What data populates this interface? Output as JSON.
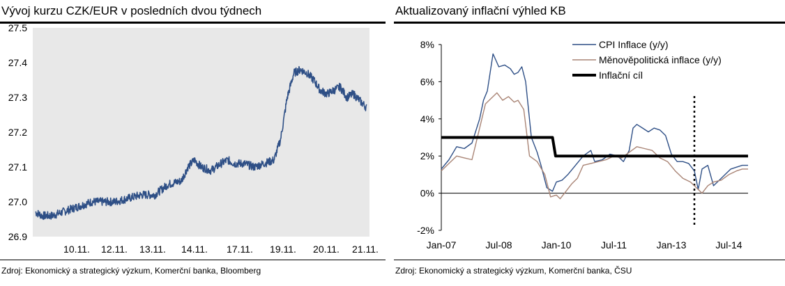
{
  "left": {
    "title": "Vývoj kurzu CZK/EUR v posledních dvou týdnech",
    "source": "Zdroj: Ekonomický a strategický výzkum, Komerční banka, Bloomberg"
  },
  "right": {
    "title": "Aktualizovaný inflační výhled KB",
    "source": "Zdroj: Ekonomický a strategický výzkum, Komerční banka, ČSU"
  },
  "chart_data": [
    {
      "type": "line",
      "title": "Vývoj kurzu CZK/EUR v posledních dvou týdnech",
      "ylim": [
        26.9,
        27.5
      ],
      "yticks": [
        "26.9",
        "27.0",
        "27.1",
        "27.2",
        "27.3",
        "27.4",
        "27.5"
      ],
      "xticks": [
        "10.11.",
        "12.11.",
        "13.11.",
        "14.11.",
        "17.11.",
        "19.11.",
        "20.11.",
        "21.11."
      ],
      "grid": false,
      "background": "#e8e8e8",
      "series": [
        {
          "color": "#2e4f86",
          "x": [
            0,
            0.02,
            0.05,
            0.08,
            0.11,
            0.14,
            0.17,
            0.2,
            0.24,
            0.28,
            0.32,
            0.36,
            0.4,
            0.44,
            0.46,
            0.48,
            0.5,
            0.53,
            0.56,
            0.58,
            0.6,
            0.63,
            0.66,
            0.69,
            0.72,
            0.74,
            0.76,
            0.78,
            0.8,
            0.82,
            0.84,
            0.86,
            0.88,
            0.9,
            0.92,
            0.94,
            0.96,
            0.98,
            1.0
          ],
          "values": [
            26.97,
            26.96,
            26.96,
            26.97,
            26.98,
            26.99,
            27.0,
            27.0,
            27.0,
            27.01,
            27.02,
            27.02,
            27.05,
            27.06,
            27.1,
            27.12,
            27.1,
            27.09,
            27.11,
            27.12,
            27.11,
            27.11,
            27.1,
            27.11,
            27.12,
            27.18,
            27.3,
            27.37,
            27.38,
            27.37,
            27.35,
            27.32,
            27.31,
            27.32,
            27.33,
            27.3,
            27.31,
            27.29,
            27.27
          ],
          "noise": 0.012
        }
      ]
    },
    {
      "type": "line",
      "title": "Aktualizovaný inflační výhled KB",
      "ylim": [
        -2,
        8
      ],
      "yticks": [
        "-2%",
        "0%",
        "2%",
        "4%",
        "6%",
        "8%"
      ],
      "xticks": [
        "Jan-07",
        "Jul-08",
        "Jan-10",
        "Jul-11",
        "Jan-13",
        "Jul-14"
      ],
      "xlim": [
        2007.0,
        2015.0
      ],
      "legend": "top-right",
      "vline_x": 2013.6,
      "series": [
        {
          "name": "CPI Inflace (y/y)",
          "color": "#2e4f86",
          "x": [
            2007.0,
            2007.2,
            2007.4,
            2007.6,
            2007.8,
            2008.0,
            2008.1,
            2008.2,
            2008.35,
            2008.5,
            2008.65,
            2008.8,
            2008.9,
            2009.0,
            2009.1,
            2009.2,
            2009.35,
            2009.5,
            2009.6,
            2009.75,
            2009.9,
            2010.0,
            2010.15,
            2010.3,
            2010.5,
            2010.7,
            2010.9,
            2011.0,
            2011.2,
            2011.4,
            2011.6,
            2011.75,
            2011.9,
            2012.0,
            2012.1,
            2012.25,
            2012.4,
            2012.55,
            2012.7,
            2012.85,
            2013.0,
            2013.15,
            2013.3,
            2013.45,
            2013.6,
            2013.7,
            2013.8,
            2013.95,
            2014.1,
            2014.25,
            2014.4,
            2014.55,
            2014.7,
            2014.85,
            2015.0
          ],
          "values": [
            1.3,
            1.8,
            2.5,
            2.4,
            2.7,
            4.0,
            5.0,
            5.5,
            7.5,
            6.8,
            6.9,
            6.7,
            6.4,
            6.5,
            6.8,
            6.0,
            3.0,
            2.2,
            1.5,
            0.3,
            0.1,
            0.6,
            0.7,
            1.0,
            1.5,
            2.0,
            2.3,
            1.7,
            1.8,
            2.1,
            2.0,
            1.7,
            2.3,
            3.5,
            3.7,
            3.5,
            3.3,
            3.5,
            3.4,
            3.1,
            2.1,
            1.7,
            1.7,
            1.6,
            1.2,
            0.2,
            1.3,
            1.5,
            0.4,
            0.7,
            1.0,
            1.3,
            1.4,
            1.5,
            1.5
          ]
        },
        {
          "name": "Měnověpolitická inflace (y/y)",
          "color": "#a98475",
          "x": [
            2007.0,
            2007.2,
            2007.4,
            2007.6,
            2007.8,
            2008.0,
            2008.15,
            2008.3,
            2008.45,
            2008.6,
            2008.75,
            2008.9,
            2009.0,
            2009.15,
            2009.3,
            2009.5,
            2009.7,
            2009.85,
            2010.0,
            2010.1,
            2010.25,
            2010.4,
            2010.55,
            2010.7,
            2010.9,
            2011.1,
            2011.3,
            2011.5,
            2011.7,
            2011.9,
            2012.1,
            2012.3,
            2012.5,
            2012.7,
            2012.9,
            2013.1,
            2013.3,
            2013.5,
            2013.7,
            2013.8,
            2013.95,
            2014.1,
            2014.3,
            2014.5,
            2014.7,
            2014.85,
            2015.0
          ],
          "values": [
            1.2,
            1.6,
            2.0,
            1.9,
            1.8,
            3.5,
            4.8,
            5.1,
            5.4,
            5.0,
            5.2,
            4.9,
            5.0,
            4.5,
            2.0,
            1.7,
            1.0,
            -0.2,
            -0.1,
            -0.3,
            0.1,
            0.5,
            0.8,
            1.5,
            1.6,
            1.7,
            1.8,
            2.0,
            1.9,
            2.2,
            2.5,
            2.4,
            2.3,
            1.9,
            1.7,
            1.2,
            0.8,
            0.6,
            0.2,
            0.0,
            0.4,
            0.6,
            0.7,
            1.0,
            1.2,
            1.3,
            1.3
          ]
        },
        {
          "name": "Inflační cíl",
          "color": "#000000",
          "x": [
            2007.0,
            2009.9,
            2009.98,
            2015.0
          ],
          "values": [
            3.0,
            3.0,
            2.0,
            2.0
          ]
        }
      ]
    }
  ]
}
